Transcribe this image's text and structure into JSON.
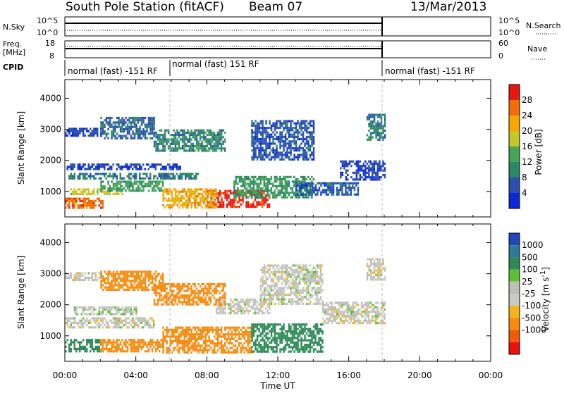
{
  "header": {
    "station": "South Pole Station (fitACF)",
    "beam": "Beam 07",
    "date": "13/Mar/2013"
  },
  "top_panels": {
    "nsky_label": "N.Sky",
    "nsky_ticks": [
      "10^5",
      "10^0"
    ],
    "nsearch_label": "N.Search",
    "nsearch_ticks": [
      "10^5",
      "10^0"
    ],
    "freq_label_1": "Freq.",
    "freq_label_2": "[MHz]",
    "freq_ticks": [
      "18",
      "8"
    ],
    "nave_label": "Nave",
    "nave_ticks": [
      "60",
      "0"
    ],
    "cpid_label": "CPID",
    "cpid_segments": [
      {
        "label": "normal (fast) -151 RF",
        "start_hour": 0,
        "end_hour": 6
      },
      {
        "label": "normal (fast) 151 RF",
        "start_hour": 6,
        "end_hour": 18
      },
      {
        "label": "normal (fast) -151 RF",
        "start_hour": 18,
        "end_hour": 24
      }
    ]
  },
  "colors": {
    "power": [
      "#0a2ad8",
      "#2a4fb0",
      "#2b8a63",
      "#49a358",
      "#c4c62c",
      "#f7a800",
      "#f26d08",
      "#e51812"
    ],
    "velocity": [
      "#ee1111",
      "#f25a0a",
      "#f58c10",
      "#f3b51c",
      "#c9c9c4",
      "#bfbfba",
      "#5fbf38",
      "#2f8a58",
      "#2a7a98",
      "#2045b8"
    ]
  },
  "chart_data": [
    {
      "type": "heatmap",
      "name": "power-panel",
      "ylabel": "Slant Range [km]",
      "xlabel": "Time UT",
      "x_ticks": [
        "00:00",
        "04:00",
        "08:00",
        "12:00",
        "16:00",
        "20:00",
        "00:00"
      ],
      "xlim_hours": [
        0,
        24
      ],
      "y_ticks": [
        1000,
        2000,
        3000,
        4000
      ],
      "ylim": [
        180,
        4600
      ],
      "colorbar": {
        "label": "Power [dB]",
        "ticks": [
          4,
          8,
          12,
          16,
          20,
          24,
          28
        ],
        "range": [
          0,
          32
        ]
      },
      "regions": [
        {
          "t0": 0.0,
          "t1": 2.1,
          "r0": 500,
          "r1": 800,
          "value": 26
        },
        {
          "t0": 0.3,
          "t1": 3.2,
          "r0": 900,
          "r1": 1100,
          "value": 18
        },
        {
          "t0": 2.0,
          "t1": 5.5,
          "r0": 1000,
          "r1": 1350,
          "value": 13
        },
        {
          "t0": 0.2,
          "t1": 7.5,
          "r0": 1400,
          "r1": 1600,
          "value": 9
        },
        {
          "t0": 0.1,
          "t1": 6.5,
          "r0": 1700,
          "r1": 1900,
          "value": 5
        },
        {
          "t0": 0.0,
          "t1": 2.0,
          "r0": 2800,
          "r1": 3050,
          "value": 5
        },
        {
          "t0": 2.0,
          "t1": 5.0,
          "r0": 2700,
          "r1": 3400,
          "value": 7
        },
        {
          "t0": 5.0,
          "t1": 9.0,
          "r0": 2300,
          "r1": 3000,
          "value": 10
        },
        {
          "t0": 10.5,
          "t1": 14.0,
          "r0": 2000,
          "r1": 3300,
          "value": 6
        },
        {
          "t0": 8.0,
          "t1": 11.5,
          "r0": 500,
          "r1": 1050,
          "value": 30
        },
        {
          "t0": 5.5,
          "t1": 8.5,
          "r0": 450,
          "r1": 1100,
          "value": 22
        },
        {
          "t0": 9.5,
          "t1": 14.0,
          "r0": 800,
          "r1": 1500,
          "value": 12
        },
        {
          "t0": 13.0,
          "t1": 16.5,
          "r0": 900,
          "r1": 1300,
          "value": 6
        },
        {
          "t0": 15.5,
          "t1": 18.0,
          "r0": 1400,
          "r1": 2000,
          "value": 5
        },
        {
          "t0": 17.0,
          "t1": 18.0,
          "r0": 2700,
          "r1": 3500,
          "value": 9
        }
      ]
    },
    {
      "type": "heatmap",
      "name": "velocity-panel",
      "ylabel": "Slant Range [km]",
      "xlabel": "Time UT",
      "x_ticks": [
        "00:00",
        "04:00",
        "08:00",
        "12:00",
        "16:00",
        "20:00",
        "00:00"
      ],
      "xlim_hours": [
        0,
        24
      ],
      "y_ticks": [
        1000,
        2000,
        3000,
        4000
      ],
      "ylim": [
        180,
        4600
      ],
      "colorbar": {
        "label": "Velocity [m s^-1]",
        "label_main": "Velocity [m s",
        "label_sup": "-1",
        "label_close": "]",
        "ticks": [
          -1000,
          -500,
          -100,
          -25,
          25,
          100,
          500,
          1000
        ],
        "tick_labels": [
          "1000",
          "500",
          "100",
          "25",
          "-25",
          "-100",
          "-500",
          "-1000"
        ]
      },
      "regions": [
        {
          "t0": 0.0,
          "t1": 2.0,
          "r0": 500,
          "r1": 900,
          "value": 150
        },
        {
          "t0": 0.0,
          "t1": 5.0,
          "r0": 1300,
          "r1": 1600,
          "value": 0
        },
        {
          "t0": 0.5,
          "t1": 4.0,
          "r0": 1700,
          "r1": 1950,
          "value": 10
        },
        {
          "t0": 2.0,
          "t1": 5.5,
          "r0": 500,
          "r1": 900,
          "value": -300
        },
        {
          "t0": 5.5,
          "t1": 10.5,
          "r0": 500,
          "r1": 1300,
          "value": -400
        },
        {
          "t0": 10.5,
          "t1": 14.5,
          "r0": 500,
          "r1": 1400,
          "value": 200
        },
        {
          "t0": 8.5,
          "t1": 11.5,
          "r0": 1700,
          "r1": 2200,
          "value": 0
        },
        {
          "t0": 0.0,
          "t1": 2.0,
          "r0": 2800,
          "r1": 3050,
          "value": 0
        },
        {
          "t0": 2.0,
          "t1": 5.5,
          "r0": 2500,
          "r1": 3100,
          "value": -200
        },
        {
          "t0": 5.0,
          "t1": 9.0,
          "r0": 2000,
          "r1": 2700,
          "value": -150
        },
        {
          "t0": 11.0,
          "t1": 14.5,
          "r0": 2000,
          "r1": 3300,
          "value": 0
        },
        {
          "t0": 14.5,
          "t1": 18.0,
          "r0": 1400,
          "r1": 2100,
          "value": 0
        },
        {
          "t0": 17.0,
          "t1": 18.0,
          "r0": 2800,
          "r1": 3500,
          "value": 0
        }
      ]
    }
  ]
}
